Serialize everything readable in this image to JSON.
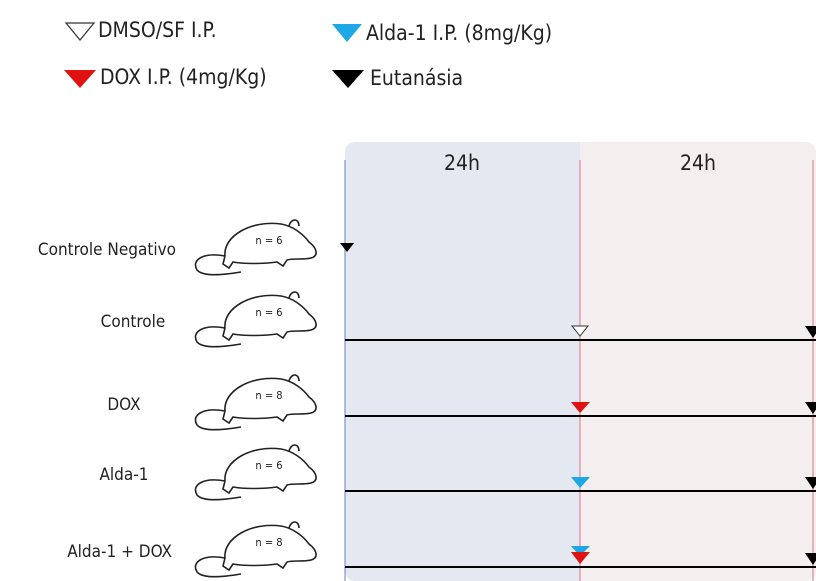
{
  "legend": [
    {
      "label": "DMSO/SF I.P."
    },
    {
      "label": "Alda-1 I.P. (8mg/Kg)"
    },
    {
      "label": "DOX I.P. (4mg/Kg)"
    },
    {
      "label": "Eutanásia"
    }
  ],
  "panels": [
    {
      "label": "24h"
    },
    {
      "label": "24h"
    }
  ],
  "groups": [
    {
      "label": "Controle Negativo",
      "n": "n = 6"
    },
    {
      "label": "Controle",
      "n": "n = 6"
    },
    {
      "label": "DOX",
      "n": "n = 8"
    },
    {
      "label": "Alda-1",
      "n": "n = 6"
    },
    {
      "label": "Alda-1 + DOX",
      "n": "n = 8"
    }
  ]
}
